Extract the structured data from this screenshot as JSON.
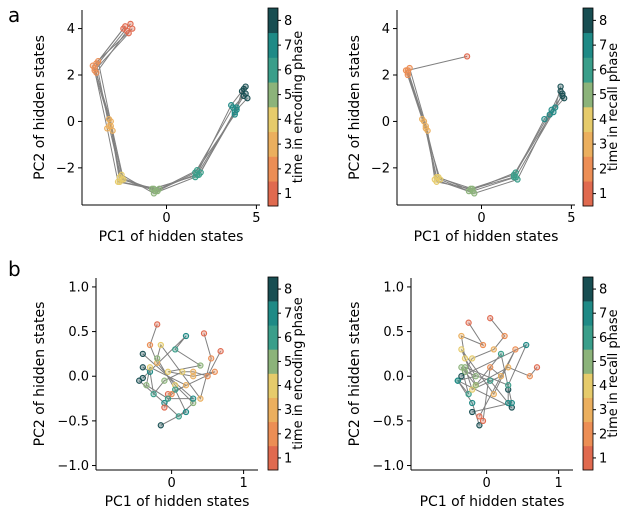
{
  "panel_labels": [
    "a",
    "b"
  ],
  "palette": [
    "#E06A4F",
    "#EC8E55",
    "#EBAF5E",
    "#E6CB6B",
    "#8CB37A",
    "#3A9E8A",
    "#1F8A86",
    "#184E52"
  ],
  "chart_data": [
    {
      "type": "scatter",
      "panel": "a",
      "xlabel": "PC1 of hidden states",
      "ylabel": "PC2 of hidden states",
      "colorbar_label": "time in encoding phase",
      "xlim": [
        -4.7,
        5.2
      ],
      "ylim": [
        -3.6,
        4.8
      ],
      "xticks": [
        {
          "v": 0,
          "t": "0"
        },
        {
          "v": 5,
          "t": "5"
        }
      ],
      "yticks": [
        {
          "v": -2,
          "t": "−2"
        },
        {
          "v": 0,
          "t": "0"
        },
        {
          "v": 2,
          "t": "2"
        },
        {
          "v": 4,
          "t": "4"
        }
      ],
      "colorbar_ticks": [
        "1",
        "2",
        "3",
        "4",
        "5",
        "6",
        "7",
        "8"
      ],
      "trajectories": [
        {
          "points": [
            [
              -2.3,
              4.1
            ],
            [
              -3.9,
              2.5
            ],
            [
              -3.2,
              -0.2
            ],
            [
              -2.5,
              -2.5
            ],
            [
              -0.7,
              -2.9
            ],
            [
              1.7,
              -2.3
            ],
            [
              3.8,
              0.4
            ],
            [
              4.3,
              1.4
            ]
          ],
          "steps": [
            1,
            2,
            3,
            4,
            5,
            6,
            7,
            8
          ]
        },
        {
          "points": [
            [
              -2.0,
              4.2
            ],
            [
              -4.0,
              2.3
            ],
            [
              -3.1,
              0.0
            ],
            [
              -2.6,
              -2.4
            ],
            [
              -0.5,
              -3.0
            ],
            [
              1.6,
              -2.2
            ],
            [
              3.7,
              0.6
            ],
            [
              4.4,
              1.2
            ]
          ],
          "steps": [
            1,
            2,
            3,
            4,
            5,
            6,
            7,
            8
          ]
        },
        {
          "points": [
            [
              -2.1,
              3.8
            ],
            [
              -4.0,
              2.2
            ],
            [
              -3.3,
              -0.3
            ],
            [
              -2.7,
              -2.6
            ],
            [
              -0.8,
              -2.9
            ],
            [
              1.8,
              -2.3
            ],
            [
              3.9,
              0.5
            ],
            [
              4.5,
              1.0
            ]
          ],
          "steps": [
            1,
            2,
            3,
            4,
            5,
            6,
            7,
            8
          ]
        },
        {
          "points": [
            [
              -2.4,
              4.0
            ],
            [
              -3.8,
              2.6
            ],
            [
              -3.0,
              -0.4
            ],
            [
              -2.4,
              -2.5
            ],
            [
              -0.6,
              -3.0
            ],
            [
              1.7,
              -2.1
            ],
            [
              3.8,
              0.3
            ],
            [
              4.2,
              1.3
            ]
          ],
          "steps": [
            1,
            2,
            3,
            4,
            5,
            6,
            7,
            8
          ]
        },
        {
          "points": [
            [
              -2.2,
              3.9
            ],
            [
              -3.9,
              2.1
            ],
            [
              -3.2,
              0.1
            ],
            [
              -2.5,
              -2.3
            ],
            [
              -0.7,
              -3.1
            ],
            [
              1.6,
              -2.4
            ],
            [
              3.6,
              0.7
            ],
            [
              4.4,
              1.5
            ]
          ],
          "steps": [
            1,
            2,
            3,
            4,
            5,
            6,
            7,
            8
          ]
        },
        {
          "points": [
            [
              -1.9,
              4.0
            ],
            [
              -4.1,
              2.4
            ],
            [
              -3.1,
              -0.2
            ],
            [
              -2.6,
              -2.6
            ],
            [
              -0.4,
              -2.9
            ],
            [
              1.9,
              -2.2
            ],
            [
              3.9,
              0.6
            ],
            [
              4.3,
              1.1
            ]
          ],
          "steps": [
            1,
            2,
            3,
            4,
            5,
            6,
            7,
            8
          ]
        }
      ]
    },
    {
      "type": "scatter",
      "panel": "a",
      "xlabel": "PC1 of hidden states",
      "ylabel": "PC2 of hidden states",
      "colorbar_label": "time in recall phase",
      "xlim": [
        -4.7,
        5.2
      ],
      "ylim": [
        -3.6,
        4.8
      ],
      "xticks": [
        {
          "v": 0,
          "t": "0"
        },
        {
          "v": 5,
          "t": "5"
        }
      ],
      "yticks": [
        {
          "v": -2,
          "t": "−2"
        },
        {
          "v": 0,
          "t": "0"
        },
        {
          "v": 2,
          "t": "2"
        },
        {
          "v": 4,
          "t": "4"
        }
      ],
      "colorbar_ticks": [
        "1",
        "2",
        "3",
        "4",
        "5",
        "6",
        "7",
        "8"
      ],
      "trajectories": [
        {
          "points": [
            [
              -0.8,
              2.8
            ],
            [
              -4.1,
              2.2
            ],
            [
              -3.1,
              -0.2
            ],
            [
              -2.4,
              -2.4
            ],
            [
              -0.5,
              -3.0
            ],
            [
              1.9,
              -2.4
            ],
            [
              4.0,
              0.4
            ],
            [
              4.5,
              1.2
            ]
          ],
          "steps": [
            1,
            2,
            3,
            4,
            5,
            6,
            7,
            8
          ]
        },
        {
          "points": [
            [
              -4.1,
              2.1
            ],
            [
              -3.2,
              0.0
            ],
            [
              -2.5,
              -2.6
            ],
            [
              -0.6,
              -2.9
            ],
            [
              1.8,
              -2.3
            ],
            [
              3.9,
              0.5
            ],
            [
              4.4,
              1.3
            ]
          ],
          "steps": [
            2,
            3,
            4,
            5,
            6,
            7,
            8
          ]
        },
        {
          "points": [
            [
              -4.0,
              2.3
            ],
            [
              -3.0,
              -0.4
            ],
            [
              -2.6,
              -2.5
            ],
            [
              -0.4,
              -3.1
            ],
            [
              2.0,
              -2.5
            ],
            [
              3.8,
              0.3
            ],
            [
              4.6,
              1.0
            ]
          ],
          "steps": [
            2,
            3,
            4,
            5,
            6,
            7,
            8
          ]
        },
        {
          "points": [
            [
              -4.2,
              2.2
            ],
            [
              -3.3,
              0.1
            ],
            [
              -2.3,
              -2.5
            ],
            [
              -0.7,
              -3.0
            ],
            [
              1.9,
              -2.2
            ],
            [
              4.1,
              0.6
            ],
            [
              4.4,
              1.5
            ]
          ],
          "steps": [
            2,
            3,
            4,
            5,
            6,
            7,
            8
          ]
        },
        {
          "points": [
            [
              -4.1,
              2.0
            ],
            [
              -3.1,
              -0.3
            ],
            [
              -2.5,
              -2.4
            ],
            [
              -0.5,
              -2.9
            ],
            [
              1.8,
              -2.4
            ],
            [
              3.5,
              0.1
            ],
            [
              4.5,
              1.1
            ]
          ],
          "steps": [
            2,
            3,
            4,
            5,
            6,
            7,
            8
          ]
        }
      ]
    },
    {
      "type": "scatter",
      "panel": "b",
      "xlabel": "PC1 of hidden states",
      "ylabel": "PC2 of hidden states",
      "colorbar_label": "time in encoding phase",
      "xlim": [
        -1.05,
        1.2
      ],
      "ylim": [
        -1.05,
        1.1
      ],
      "xticks": [
        {
          "v": 0,
          "t": "0"
        },
        {
          "v": 1,
          "t": "1"
        }
      ],
      "yticks": [
        {
          "v": -1.0,
          "t": "−1.0"
        },
        {
          "v": -0.5,
          "t": "−0.5"
        },
        {
          "v": 0.0,
          "t": "0.0"
        },
        {
          "v": 0.5,
          "t": "0.5"
        },
        {
          "v": 1.0,
          "t": "1.0"
        }
      ],
      "colorbar_ticks": [
        "1",
        "2",
        "3",
        "4",
        "5",
        "6",
        "7",
        "8"
      ],
      "trajectories": [
        {
          "points": [
            [
              -0.2,
              0.58
            ],
            [
              -0.3,
              0.35
            ],
            [
              -0.2,
              0.15
            ],
            [
              0.05,
              -0.1
            ],
            [
              0.3,
              -0.3
            ],
            [
              0.1,
              -0.45
            ],
            [
              -0.1,
              -0.3
            ],
            [
              -0.45,
              -0.05
            ]
          ],
          "steps": [
            1,
            2,
            3,
            4,
            5,
            6,
            7,
            8
          ]
        },
        {
          "points": [
            [
              0.68,
              0.28
            ],
            [
              0.5,
              0.0
            ],
            [
              0.3,
              0.05
            ],
            [
              0.15,
              0.05
            ],
            [
              -0.1,
              -0.05
            ],
            [
              -0.25,
              -0.2
            ],
            [
              -0.3,
              0.05
            ],
            [
              -0.4,
              0.1
            ]
          ],
          "steps": [
            1,
            2,
            3,
            4,
            5,
            6,
            7,
            8
          ]
        },
        {
          "points": [
            [
              0.45,
              0.48
            ],
            [
              0.55,
              0.2
            ],
            [
              0.4,
              -0.25
            ],
            [
              -0.15,
              0.35
            ],
            [
              -0.2,
              0.2
            ],
            [
              0.05,
              -0.15
            ],
            [
              0.2,
              -0.4
            ],
            [
              -0.15,
              -0.55
            ]
          ],
          "steps": [
            1,
            2,
            3,
            4,
            5,
            6,
            7,
            8
          ]
        },
        {
          "points": [
            [
              -0.05,
              -0.2
            ],
            [
              0.6,
              0.05
            ],
            [
              0.3,
              0.0
            ],
            [
              -0.05,
              0.05
            ],
            [
              0.4,
              0.12
            ],
            [
              0.05,
              0.3
            ],
            [
              0.2,
              0.45
            ],
            [
              -0.4,
              -0.02
            ]
          ],
          "steps": [
            1,
            2,
            3,
            4,
            5,
            6,
            7,
            8
          ]
        },
        {
          "points": [
            [
              -0.1,
              -0.35
            ],
            [
              0.0,
              -0.2
            ],
            [
              0.2,
              -0.1
            ],
            [
              -0.3,
              0.1
            ],
            [
              -0.35,
              -0.1
            ],
            [
              -0.05,
              -0.25
            ],
            [
              0.3,
              -0.25
            ],
            [
              -0.4,
              0.25
            ]
          ],
          "steps": [
            1,
            2,
            3,
            4,
            5,
            6,
            7,
            8
          ]
        }
      ]
    },
    {
      "type": "scatter",
      "panel": "b",
      "xlabel": "PC1 of hidden states",
      "ylabel": "PC2 of hidden states",
      "colorbar_label": "time in recall phase",
      "xlim": [
        -1.05,
        1.2
      ],
      "ylim": [
        -1.05,
        1.1
      ],
      "xticks": [
        {
          "v": 0,
          "t": "0"
        },
        {
          "v": 1,
          "t": "1"
        }
      ],
      "yticks": [
        {
          "v": -1.0,
          "t": "−1.0"
        },
        {
          "v": -0.5,
          "t": "−0.5"
        },
        {
          "v": 0.0,
          "t": "0.0"
        },
        {
          "v": 0.5,
          "t": "0.5"
        },
        {
          "v": 1.0,
          "t": "1.0"
        }
      ],
      "colorbar_ticks": [
        "1",
        "2",
        "3",
        "4",
        "5",
        "6",
        "7",
        "8"
      ],
      "trajectories": [
        {
          "points": [
            [
              -0.25,
              0.6
            ],
            [
              -0.05,
              0.35
            ],
            [
              -0.35,
              0.45
            ],
            [
              -0.3,
              0.2
            ],
            [
              -0.15,
              0.0
            ],
            [
              -0.4,
              -0.05
            ],
            [
              -0.2,
              -0.3
            ],
            [
              -0.1,
              -0.55
            ]
          ],
          "steps": [
            1,
            2,
            3,
            4,
            5,
            6,
            7,
            8
          ]
        },
        {
          "points": [
            [
              0.05,
              0.65
            ],
            [
              0.25,
              0.45
            ],
            [
              0.1,
              0.3
            ],
            [
              -0.2,
              0.2
            ],
            [
              -0.3,
              0.05
            ],
            [
              0.05,
              -0.05
            ],
            [
              0.3,
              -0.3
            ],
            [
              0.3,
              -0.15
            ]
          ],
          "steps": [
            1,
            2,
            3,
            4,
            5,
            6,
            7,
            8
          ]
        },
        {
          "points": [
            [
              0.7,
              0.1
            ],
            [
              0.6,
              0.0
            ],
            [
              0.3,
              0.1
            ],
            [
              -0.15,
              -0.1
            ],
            [
              -0.35,
              0.1
            ],
            [
              -0.25,
              -0.2
            ],
            [
              -0.4,
              -0.05
            ],
            [
              0.35,
              -0.35
            ]
          ],
          "steps": [
            1,
            2,
            3,
            4,
            5,
            6,
            7,
            8
          ]
        },
        {
          "points": [
            [
              -0.05,
              -0.5
            ],
            [
              0.05,
              0.1
            ],
            [
              0.2,
              0.0
            ],
            [
              -0.2,
              -0.15
            ],
            [
              -0.3,
              0.1
            ],
            [
              0.3,
              -0.1
            ],
            [
              0.55,
              0.35
            ],
            [
              -0.35,
              0.0
            ]
          ],
          "steps": [
            1,
            2,
            3,
            4,
            5,
            6,
            7,
            8
          ]
        },
        {
          "points": [
            [
              -0.1,
              -0.45
            ],
            [
              0.4,
              0.3
            ],
            [
              0.1,
              -0.2
            ],
            [
              -0.35,
              0.3
            ],
            [
              -0.15,
              -0.1
            ],
            [
              0.2,
              0.25
            ],
            [
              0.35,
              -0.3
            ],
            [
              -0.2,
              -0.4
            ]
          ],
          "steps": [
            1,
            2,
            3,
            4,
            5,
            6,
            7,
            8
          ]
        }
      ]
    }
  ]
}
